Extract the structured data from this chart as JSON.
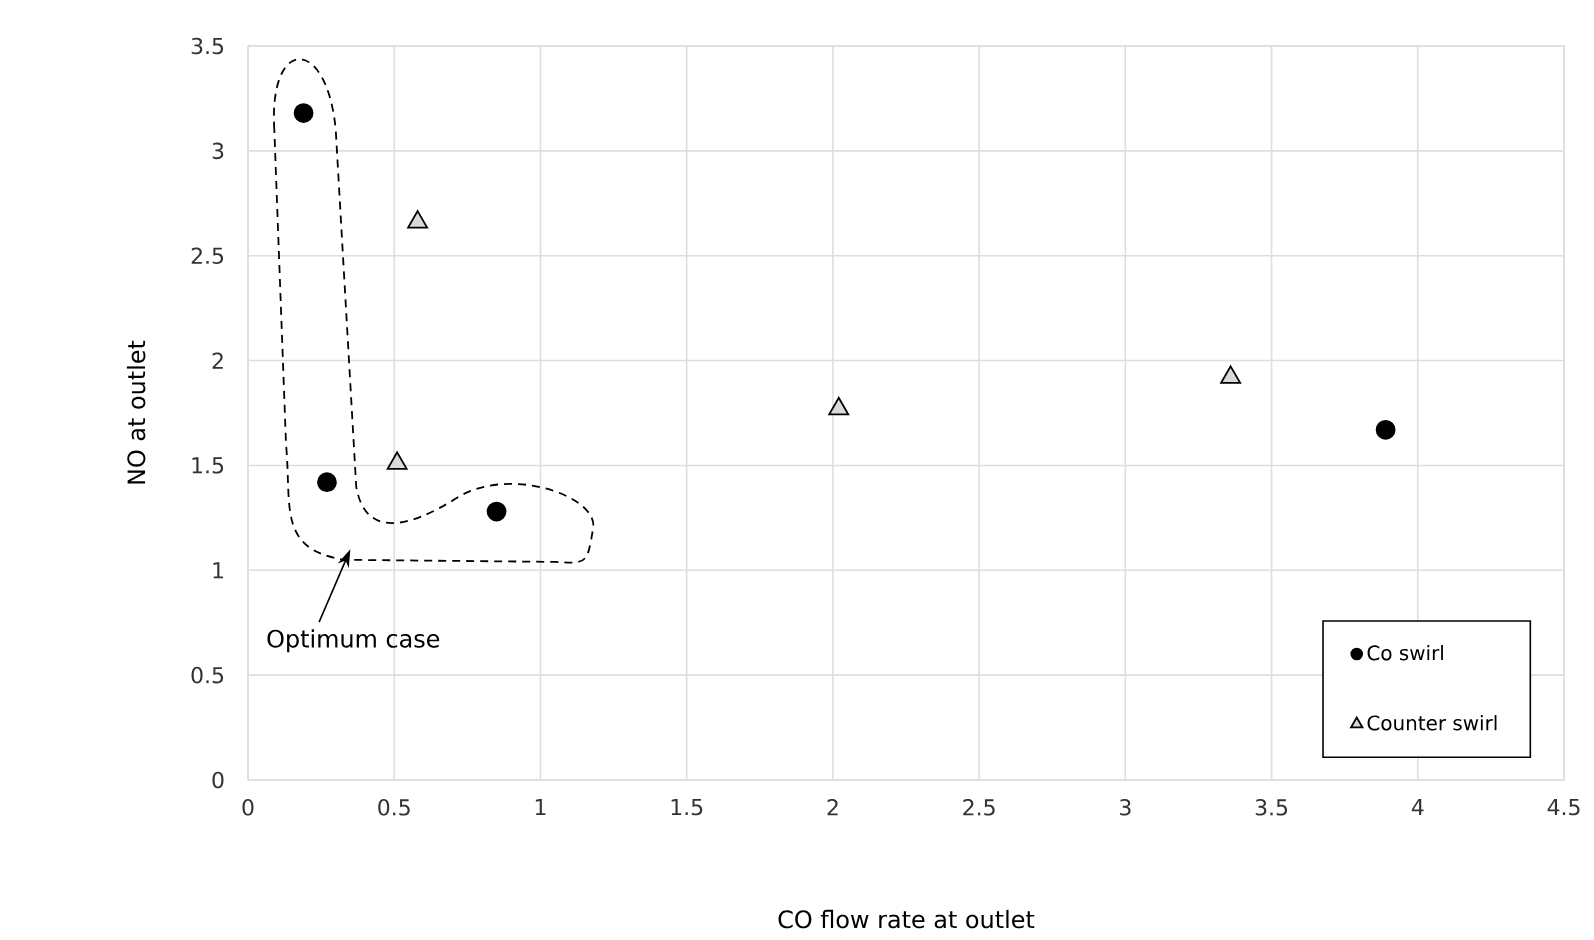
{
  "chart_data": {
    "type": "scatter",
    "xlabel": "CO flow rate at outlet",
    "ylabel": "NO at outlet",
    "xlim": [
      0,
      4.5
    ],
    "ylim": [
      0,
      3.5
    ],
    "xticks": [
      0,
      0.5,
      1,
      1.5,
      2,
      2.5,
      3,
      3.5,
      4,
      4.5
    ],
    "yticks": [
      0,
      0.5,
      1,
      1.5,
      2,
      2.5,
      3,
      3.5
    ],
    "grid": true,
    "legend": "bottom right",
    "series": [
      {
        "name": "Co swirl",
        "color": "#000000",
        "marker": "circle",
        "x": [
          0.19,
          0.27,
          0.85,
          3.89
        ],
        "values": [
          3.18,
          1.42,
          1.28,
          1.67
        ]
      },
      {
        "name": "Counter swirl",
        "color": "#d9d9d9",
        "marker": "triangle",
        "x": [
          0.58,
          0.51,
          2.02,
          3.36
        ],
        "values": [
          2.66,
          1.51,
          1.77,
          1.92
        ]
      }
    ],
    "annotations": [
      "Optimum case"
    ]
  }
}
